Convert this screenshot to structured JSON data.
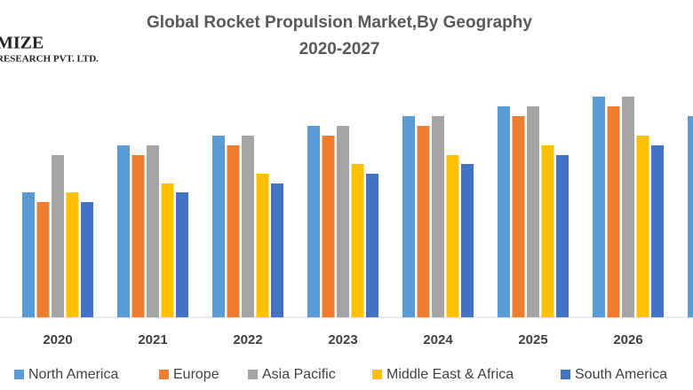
{
  "logo": {
    "line1": "MIZE",
    "line2": "RESEARCH PVT. LTD."
  },
  "chart_data": {
    "type": "bar",
    "title": "Global Rocket Propulsion Market,By Geography",
    "subtitle": "2020-2027",
    "categories": [
      "2020",
      "2021",
      "2022",
      "2023",
      "2024",
      "2025",
      "2026",
      null
    ],
    "series": [
      {
        "name": "North America",
        "color": "#5b9bd5",
        "values": [
          14.1,
          19.4,
          20.5,
          21.6,
          22.7,
          23.8,
          24.9,
          22.7
        ]
      },
      {
        "name": "Europe",
        "color": "#ed7d31",
        "values": [
          13.0,
          18.3,
          19.4,
          20.5,
          21.6,
          22.7,
          23.8,
          null
        ]
      },
      {
        "name": "Asia Pacific",
        "color": "#a5a5a5",
        "values": [
          18.3,
          19.4,
          20.5,
          21.6,
          22.7,
          23.8,
          24.9,
          null
        ]
      },
      {
        "name": "Middle East & Africa",
        "color": "#ffc000",
        "values": [
          14.1,
          15.1,
          16.2,
          17.3,
          18.3,
          19.4,
          20.5,
          null
        ]
      },
      {
        "name": "South America",
        "color": "#4472c4",
        "values": [
          13.0,
          14.1,
          15.1,
          16.2,
          17.3,
          18.3,
          19.4,
          null
        ]
      }
    ],
    "ylim": [
      0,
      25.8
    ]
  }
}
